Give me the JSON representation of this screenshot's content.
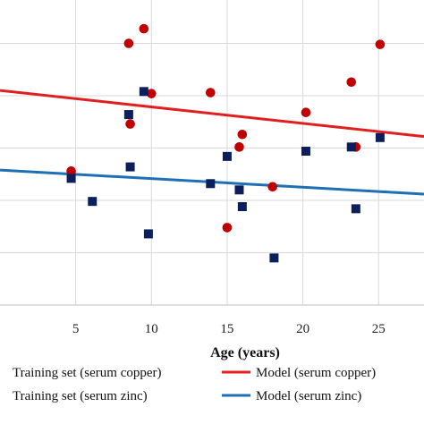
{
  "chart_data": {
    "type": "scatter",
    "xlabel": "Age (years)",
    "ylabel": "",
    "title": "",
    "xlim": [
      0,
      28
    ],
    "ylim": [
      0,
      30
    ],
    "xticks": [
      5,
      10,
      15,
      20,
      25
    ],
    "yticks": [
      0,
      5,
      10,
      15,
      20,
      25,
      30
    ],
    "grid": true,
    "legend_position": "bottom",
    "series": [
      {
        "name": "Training set (serum copper)",
        "kind": "points",
        "marker": "circle",
        "color": "#c00000",
        "points": [
          [
            6.1,
            29.9
          ],
          [
            8.5,
            25.0
          ],
          [
            9.5,
            26.4
          ],
          [
            10.0,
            20.2
          ],
          [
            8.6,
            17.3
          ],
          [
            13.9,
            20.3
          ],
          [
            15.8,
            15.1
          ],
          [
            16.0,
            16.3
          ],
          [
            18.0,
            11.3
          ],
          [
            15.0,
            7.4
          ],
          [
            20.2,
            18.4
          ],
          [
            23.2,
            21.3
          ],
          [
            23.5,
            15.1
          ],
          [
            25.1,
            24.9
          ],
          [
            4.7,
            12.8
          ]
        ]
      },
      {
        "name": "Training set (serum zinc)",
        "kind": "points",
        "marker": "square",
        "color": "#0b1f5c",
        "points": [
          [
            4.7,
            12.1
          ],
          [
            6.1,
            9.9
          ],
          [
            8.5,
            18.2
          ],
          [
            8.6,
            13.2
          ],
          [
            9.5,
            20.4
          ],
          [
            9.8,
            6.8
          ],
          [
            13.9,
            11.6
          ],
          [
            15.0,
            14.2
          ],
          [
            15.8,
            11.0
          ],
          [
            16.0,
            9.4
          ],
          [
            18.1,
            4.5
          ],
          [
            20.2,
            14.7
          ],
          [
            23.2,
            15.1
          ],
          [
            23.5,
            9.2
          ],
          [
            25.1,
            16.0
          ]
        ]
      },
      {
        "name": "Model (serum copper)",
        "kind": "line",
        "color": "#e02020",
        "points": [
          [
            0,
            20.5
          ],
          [
            28,
            16.1
          ]
        ]
      },
      {
        "name": "Model (serum zinc)",
        "kind": "line",
        "color": "#1f6fb5",
        "points": [
          [
            0,
            12.9
          ],
          [
            28,
            10.6
          ]
        ]
      }
    ]
  }
}
